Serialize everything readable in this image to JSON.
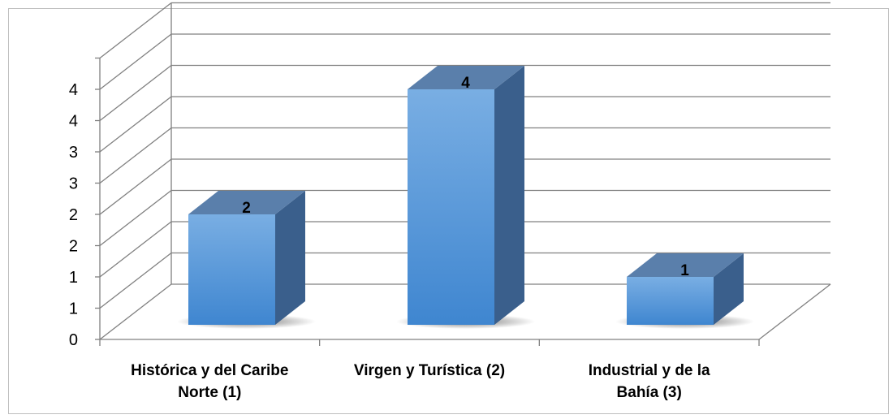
{
  "chart_data": {
    "type": "bar",
    "categories": [
      [
        "Histórica y del Caribe",
        "Norte (1)"
      ],
      [
        "Virgen y Turística (2)"
      ],
      [
        "Industrial y de la",
        "Bahía (3)"
      ]
    ],
    "values": [
      2,
      4,
      1
    ],
    "data_labels": [
      "2",
      "4",
      "1"
    ],
    "y_tick_labels": [
      "0",
      "1",
      "1",
      "2",
      "2",
      "3",
      "3",
      "4",
      "4"
    ],
    "ylim": [
      0,
      4.5
    ],
    "grid": true,
    "legend": "none",
    "style": "3d-column",
    "colors": {
      "bar_front_top": "#79aee3",
      "bar_front_bottom": "#3f86d0",
      "bar_top": "#5a7fab",
      "bar_side": "#3a5f8c",
      "gridline": "#808080"
    }
  }
}
